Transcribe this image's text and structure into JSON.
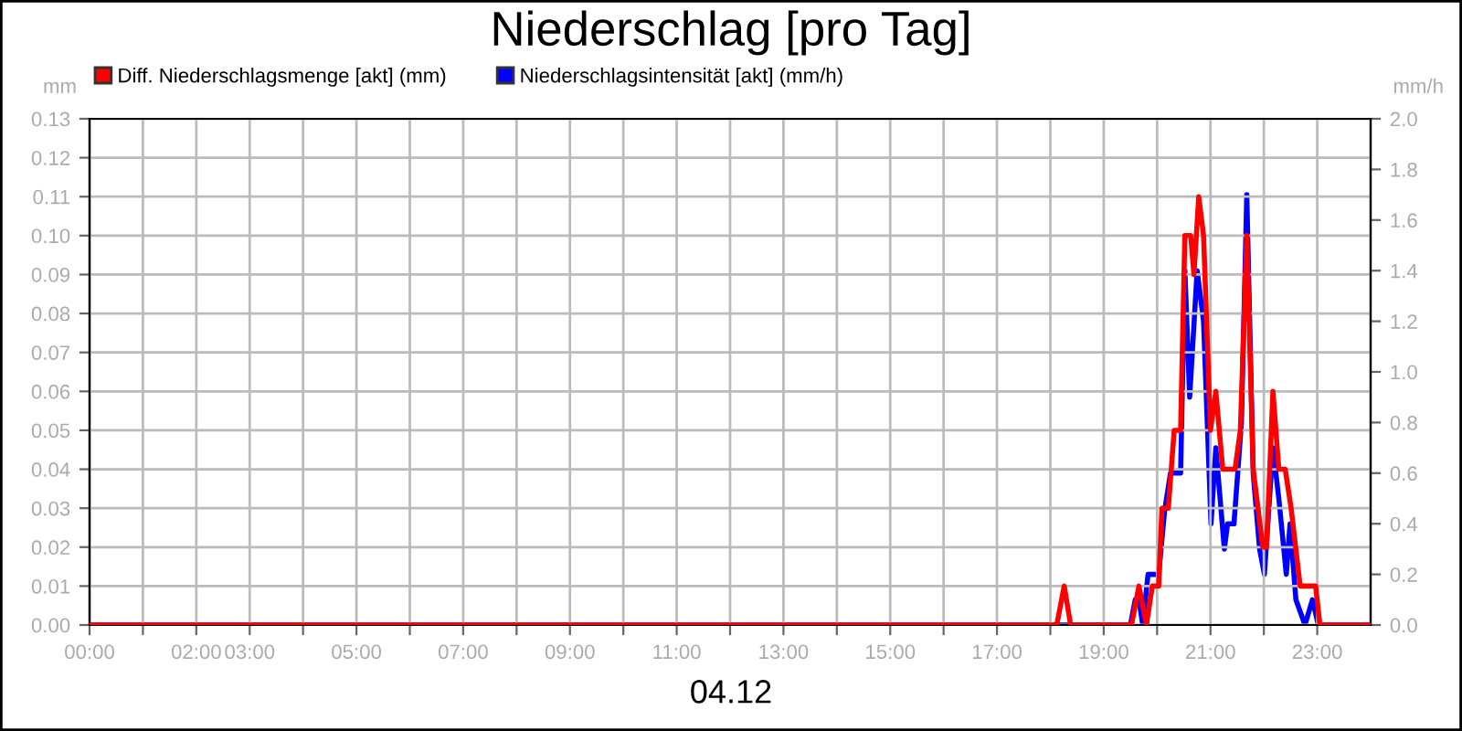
{
  "chart_data": {
    "type": "line",
    "title": "Niederschlag [pro Tag]",
    "xlabel": "04.12",
    "ylabel": "mm",
    "y2label": "mm/h",
    "series": [
      {
        "name": "Diff. Niederschlagsmenge [akt] (mm)",
        "color": "#ff0000",
        "axis": "y",
        "x": [
          0,
          18.12,
          18.26,
          18.38,
          19.52,
          19.66,
          19.8,
          19.91,
          20.03,
          20.09,
          20.21,
          20.32,
          20.44,
          20.52,
          20.63,
          20.69,
          20.78,
          20.87,
          21.0,
          21.1,
          21.23,
          21.32,
          21.46,
          21.56,
          21.68,
          21.8,
          21.98,
          22.05,
          22.17,
          22.28,
          22.4,
          22.51,
          22.68,
          22.97,
          23.05,
          24
        ],
        "values": [
          0,
          0,
          0.01,
          0,
          0,
          0.01,
          0,
          0.01,
          0.01,
          0.03,
          0.03,
          0.05,
          0.05,
          0.1,
          0.1,
          0.09,
          0.11,
          0.1,
          0.05,
          0.06,
          0.04,
          0.04,
          0.04,
          0.05,
          0.1,
          0.04,
          0.02,
          0.02,
          0.06,
          0.04,
          0.04,
          0.03,
          0.01,
          0.01,
          0,
          0
        ]
      },
      {
        "name": "Niederschlagsintensität [akt] (mm/h)",
        "color": "#0000ff",
        "axis": "y2",
        "x": [
          0,
          19.5,
          19.59,
          19.66,
          19.73,
          19.83,
          20.03,
          20.14,
          20.25,
          20.44,
          20.52,
          20.61,
          20.75,
          20.87,
          21.01,
          21.1,
          21.26,
          21.32,
          21.44,
          21.58,
          21.68,
          21.8,
          21.92,
          22.01,
          22.17,
          22.28,
          22.42,
          22.49,
          22.6,
          22.77,
          22.91,
          23.02,
          24
        ],
        "values": [
          0,
          0,
          0.1,
          0.1,
          0,
          0.2,
          0.2,
          0.45,
          0.6,
          0.6,
          1.4,
          0.9,
          1.4,
          1.2,
          0.4,
          0.7,
          0.3,
          0.4,
          0.4,
          0.8,
          1.7,
          0.6,
          0.3,
          0.2,
          0.7,
          0.5,
          0.2,
          0.4,
          0.1,
          0,
          0.1,
          0,
          0
        ]
      }
    ],
    "xlim": [
      0,
      24
    ],
    "xticks": [
      {
        "value": 0,
        "label": "00:00"
      },
      {
        "value": 1,
        "label": null
      },
      {
        "value": 2,
        "label": "02:00"
      },
      {
        "value": 3,
        "label": "03:00"
      },
      {
        "value": 4,
        "label": null
      },
      {
        "value": 5,
        "label": "05:00"
      },
      {
        "value": 6,
        "label": null
      },
      {
        "value": 7,
        "label": "07:00"
      },
      {
        "value": 8,
        "label": null
      },
      {
        "value": 9,
        "label": "09:00"
      },
      {
        "value": 10,
        "label": null
      },
      {
        "value": 11,
        "label": "11:00"
      },
      {
        "value": 12,
        "label": null
      },
      {
        "value": 13,
        "label": "13:00"
      },
      {
        "value": 14,
        "label": null
      },
      {
        "value": 15,
        "label": "15:00"
      },
      {
        "value": 16,
        "label": null
      },
      {
        "value": 17,
        "label": "17:00"
      },
      {
        "value": 18,
        "label": null
      },
      {
        "value": 19,
        "label": "19:00"
      },
      {
        "value": 20,
        "label": null
      },
      {
        "value": 21,
        "label": "21:00"
      },
      {
        "value": 22,
        "label": null
      },
      {
        "value": 23,
        "label": "23:00"
      }
    ],
    "ylim": [
      0,
      0.13
    ],
    "yticks": [
      {
        "value": 0,
        "label": "0.00"
      },
      {
        "value": 0.01,
        "label": "0.01"
      },
      {
        "value": 0.02,
        "label": "0.02"
      },
      {
        "value": 0.03,
        "label": "0.03"
      },
      {
        "value": 0.04,
        "label": "0.04"
      },
      {
        "value": 0.05,
        "label": "0.05"
      },
      {
        "value": 0.06,
        "label": "0.06"
      },
      {
        "value": 0.07,
        "label": "0.07"
      },
      {
        "value": 0.08,
        "label": "0.08"
      },
      {
        "value": 0.09,
        "label": "0.09"
      },
      {
        "value": 0.1,
        "label": "0.10"
      },
      {
        "value": 0.11,
        "label": "0.11"
      },
      {
        "value": 0.12,
        "label": "0.12"
      },
      {
        "value": 0.13,
        "label": "0.13"
      }
    ],
    "y2lim": [
      0,
      2.0
    ],
    "y2ticks": [
      {
        "value": 0,
        "label": "0.0"
      },
      {
        "value": 0.2,
        "label": "0.2"
      },
      {
        "value": 0.4,
        "label": "0.4"
      },
      {
        "value": 0.6,
        "label": "0.6"
      },
      {
        "value": 0.8,
        "label": "0.8"
      },
      {
        "value": 1.0,
        "label": "1.0"
      },
      {
        "value": 1.2,
        "label": "1.2"
      },
      {
        "value": 1.4,
        "label": "1.4"
      },
      {
        "value": 1.6,
        "label": "1.6"
      },
      {
        "value": 1.8,
        "label": "1.8"
      },
      {
        "value": 2.0,
        "label": "2.0"
      }
    ],
    "grid": true,
    "legend": "top left",
    "marker": "none",
    "line_style": "solid"
  }
}
